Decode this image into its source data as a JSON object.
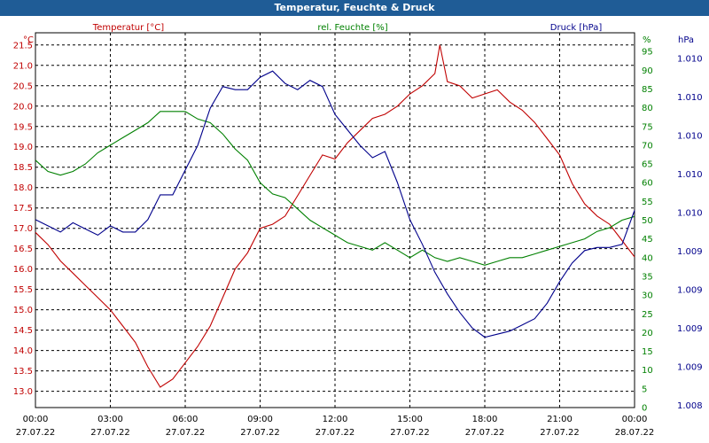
{
  "window": {
    "title": "Temperatur, Feuchte & Druck"
  },
  "colors": {
    "temperature": "#c00000",
    "humidity": "#008000",
    "pressure": "#00008b",
    "title_bg": "#1f5c96",
    "grid": "#000000"
  },
  "chart_data": {
    "type": "line",
    "title": "Temperatur, Feuchte & Druck",
    "grid": true,
    "x_ticks": [
      {
        "time": "00:00",
        "date": "27.07.22",
        "h": 0
      },
      {
        "time": "03:00",
        "date": "27.07.22",
        "h": 3
      },
      {
        "time": "06:00",
        "date": "27.07.22",
        "h": 6
      },
      {
        "time": "09:00",
        "date": "27.07.22",
        "h": 9
      },
      {
        "time": "12:00",
        "date": "27.07.22",
        "h": 12
      },
      {
        "time": "15:00",
        "date": "27.07.22",
        "h": 15
      },
      {
        "time": "18:00",
        "date": "27.07.22",
        "h": 18
      },
      {
        "time": "21:00",
        "date": "27.07.22",
        "h": 21
      },
      {
        "time": "00:00",
        "date": "28.07.22",
        "h": 24
      }
    ],
    "axes": {
      "temperature": {
        "label": "Temperatur [°C]",
        "unit": "°C",
        "min": 12.6,
        "max": 21.8,
        "ticks": [
          "13.0",
          "13.5",
          "14.0",
          "14.5",
          "15.0",
          "15.5",
          "16.0",
          "16.5",
          "17.0",
          "17.5",
          "18.0",
          "18.5",
          "19.0",
          "19.5",
          "20.0",
          "20.5",
          "21.0",
          "21.5"
        ]
      },
      "humidity": {
        "label": "rel. Feuchte [%]",
        "unit": "%",
        "min": 0,
        "max": 100,
        "ticks": [
          "0",
          "5",
          "10",
          "15",
          "20",
          "25",
          "30",
          "35",
          "40",
          "45",
          "50",
          "55",
          "60",
          "65",
          "70",
          "75",
          "80",
          "85",
          "90",
          "95"
        ]
      },
      "pressure": {
        "label": "Druck [hPa]",
        "unit": "hPa",
        "ticks": [
          "1.008",
          "1.009",
          "1.009",
          "1.009",
          "1.009",
          "1.010",
          "1.010",
          "1.010",
          "1.010",
          "1.010"
        ]
      }
    },
    "series": [
      {
        "name": "Temperatur [°C]",
        "axis": "temperature",
        "x": [
          0,
          0.5,
          1,
          1.5,
          2,
          2.5,
          3,
          3.5,
          4,
          4.5,
          5,
          5.5,
          6,
          6.5,
          7,
          7.5,
          8,
          8.5,
          9,
          9.5,
          10,
          10.5,
          11,
          11.5,
          12,
          12.5,
          13,
          13.5,
          14,
          14.5,
          15,
          15.5,
          16,
          16.2,
          16.5,
          17,
          17.5,
          18,
          18.5,
          19,
          19.5,
          20,
          20.5,
          21,
          21.5,
          22,
          22.5,
          23,
          23.5,
          24
        ],
        "y": [
          16.9,
          16.6,
          16.2,
          15.9,
          15.6,
          15.3,
          15.0,
          14.6,
          14.2,
          13.6,
          13.1,
          13.3,
          13.7,
          14.1,
          14.6,
          15.3,
          16.0,
          16.4,
          17.0,
          17.1,
          17.3,
          17.8,
          18.3,
          18.8,
          18.7,
          19.1,
          19.4,
          19.7,
          19.8,
          20.0,
          20.3,
          20.5,
          20.8,
          21.5,
          20.6,
          20.5,
          20.2,
          20.3,
          20.4,
          20.1,
          19.9,
          19.6,
          19.2,
          18.8,
          18.1,
          17.6,
          17.3,
          17.1,
          16.7,
          16.3
        ]
      },
      {
        "name": "rel. Feuchte [%]",
        "axis": "humidity",
        "x": [
          0,
          0.5,
          1,
          1.5,
          2,
          2.5,
          3,
          3.5,
          4,
          4.5,
          5,
          5.5,
          6,
          6.5,
          7,
          7.5,
          8,
          8.5,
          9,
          9.5,
          10,
          10.5,
          11,
          11.5,
          12,
          12.5,
          13,
          13.5,
          14,
          14.5,
          15,
          15.5,
          16,
          16.5,
          17,
          17.5,
          18,
          18.5,
          19,
          19.5,
          20,
          20.5,
          21,
          21.5,
          22,
          22.5,
          23,
          23.5,
          24
        ],
        "y": [
          66,
          63,
          62,
          63,
          65,
          68,
          70,
          72,
          74,
          76,
          79,
          79,
          79,
          77,
          76,
          73,
          69,
          66,
          60,
          57,
          56,
          53,
          50,
          48,
          46,
          44,
          43,
          42,
          44,
          42,
          40,
          42,
          40,
          39,
          40,
          39,
          38,
          39,
          40,
          40,
          41,
          42,
          43,
          44,
          45,
          47,
          48,
          50,
          51
        ]
      },
      {
        "name": "Druck [hPa]",
        "axis": "pressure",
        "ticks_relative": true,
        "x": [
          0,
          0.5,
          1,
          1.5,
          2,
          2.5,
          3,
          3.5,
          4,
          4.5,
          5,
          5.5,
          6,
          6.5,
          7,
          7.5,
          8,
          8.5,
          9,
          9.5,
          10,
          10.5,
          11,
          11.5,
          12,
          12.5,
          13,
          13.5,
          14,
          14.5,
          15,
          15.5,
          16,
          16.5,
          17,
          17.5,
          18,
          18.5,
          19,
          19.5,
          20,
          20.5,
          21,
          21.5,
          22,
          22.5,
          23,
          23.5,
          24
        ],
        "y": [
          6.0,
          5.8,
          5.6,
          5.9,
          5.7,
          5.5,
          5.8,
          5.6,
          5.6,
          6.0,
          6.8,
          6.8,
          7.6,
          8.4,
          9.6,
          10.3,
          10.2,
          10.2,
          10.6,
          10.8,
          10.4,
          10.2,
          10.5,
          10.3,
          9.4,
          8.9,
          8.4,
          8.0,
          8.2,
          7.2,
          6.0,
          5.2,
          4.3,
          3.6,
          3.0,
          2.5,
          2.2,
          2.3,
          2.4,
          2.6,
          2.8,
          3.3,
          4.0,
          4.6,
          5.0,
          5.1,
          5.1,
          5.2,
          6.3
        ]
      }
    ]
  }
}
